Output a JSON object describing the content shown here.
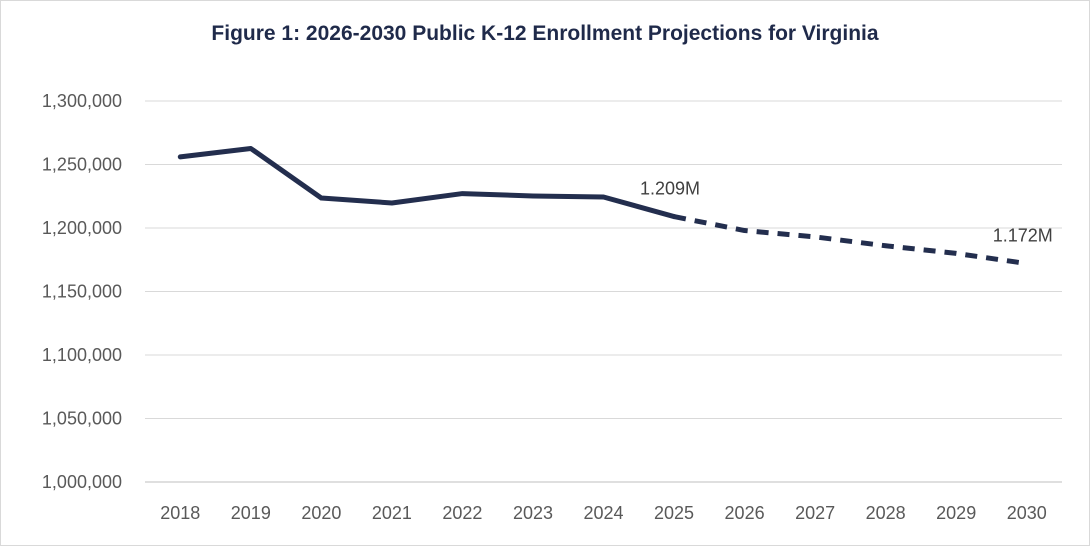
{
  "chart_data": {
    "type": "line",
    "title": "Figure 1: 2026-2030 Public K-12 Enrollment Projections for Virginia",
    "xlabel": "",
    "ylabel": "",
    "categories": [
      "2018",
      "2019",
      "2020",
      "2021",
      "2022",
      "2023",
      "2024",
      "2025",
      "2026",
      "2027",
      "2028",
      "2029",
      "2030"
    ],
    "series": [
      {
        "style": "solid",
        "values": [
          1256000,
          1262600,
          1223600,
          1219700,
          1227100,
          1225200,
          1224400,
          1209000,
          null,
          null,
          null,
          null,
          null
        ]
      },
      {
        "style": "dashed",
        "values": [
          null,
          null,
          null,
          null,
          null,
          null,
          null,
          1209000,
          1198000,
          1193000,
          1186000,
          1180000,
          1172000
        ]
      }
    ],
    "data_labels": [
      {
        "category": "2025",
        "text": "1.209M"
      },
      {
        "category": "2030",
        "text": "1.172M"
      }
    ],
    "ylim": [
      1000000,
      1300000
    ],
    "yticks": [
      "1,000,000",
      "1,050,000",
      "1,100,000",
      "1,150,000",
      "1,200,000",
      "1,250,000",
      "1,300,000"
    ],
    "grid": true,
    "legend": "none",
    "color": "#232e4e"
  }
}
